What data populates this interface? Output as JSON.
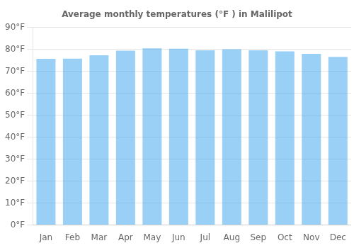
{
  "chart_data": {
    "type": "bar",
    "title": "Average monthly temperatures (°F ) in Malilipot",
    "categories": [
      "Jan",
      "Feb",
      "Mar",
      "Apr",
      "May",
      "Jun",
      "Jul",
      "Aug",
      "Sep",
      "Oct",
      "Nov",
      "Dec"
    ],
    "values": [
      75.6,
      75.7,
      77.2,
      79.3,
      80.4,
      80.2,
      79.5,
      80.0,
      79.5,
      79.0,
      77.9,
      76.5
    ],
    "ylim": [
      0,
      90
    ],
    "yticks": [
      {
        "value": 0,
        "label": "0°F"
      },
      {
        "value": 10,
        "label": "10°F"
      },
      {
        "value": 20,
        "label": "20°F"
      },
      {
        "value": 30,
        "label": "30°F"
      },
      {
        "value": 40,
        "label": "40°F"
      },
      {
        "value": 50,
        "label": "50°F"
      },
      {
        "value": 60,
        "label": "60°F"
      },
      {
        "value": 70,
        "label": "70°F"
      },
      {
        "value": 80,
        "label": "80°F"
      },
      {
        "value": 90,
        "label": "90°F"
      }
    ],
    "grid": true
  }
}
